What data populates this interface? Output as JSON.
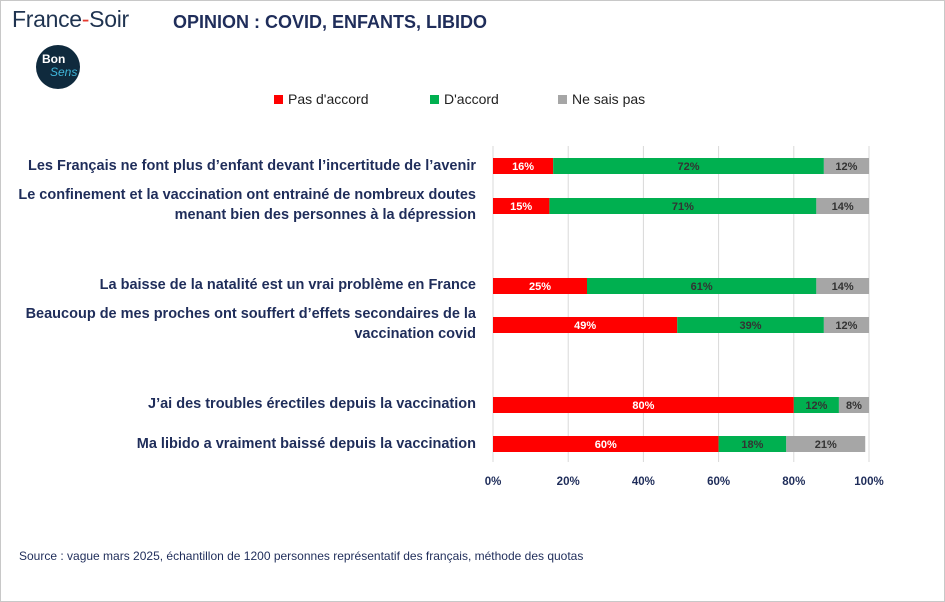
{
  "header": {
    "brand_main": "France",
    "brand_dash": "-",
    "brand_end": "Soir",
    "title": "OPINION : COVID, ENFANTS, LIBIDO",
    "badge_line1": "Bon",
    "badge_line2": "Sens"
  },
  "chart_data": {
    "type": "bar",
    "orientation": "horizontal",
    "stacked": true,
    "percent": true,
    "categories": [
      "Les Français ne font plus d’enfant devant l’incertitude de l’avenir",
      "Le confinement et la vaccination ont entrainé de nombreux doutes menant bien des personnes à la dépression",
      "La baisse de la natalité est un vrai problème en France",
      "Beaucoup de mes proches ont souffert d’effets secondaires de la vaccination covid",
      "J’ai des troubles érectiles depuis la vaccination",
      "Ma libido a vraiment baissé depuis la vaccination"
    ],
    "category_lines": [
      [
        "Les Français ne font plus d’enfant devant l’incertitude de l’avenir"
      ],
      [
        "Le confinement et la vaccination ont entrainé de nombreux doutes",
        "menant bien des personnes à la dépression"
      ],
      [
        "La baisse de la natalité est un vrai problème en France"
      ],
      [
        "Beaucoup de mes proches ont souffert d’effets secondaires de la",
        "vaccination covid"
      ],
      [
        "J’ai des troubles érectiles depuis la vaccination"
      ],
      [
        "Ma libido a vraiment baissé depuis la vaccination"
      ]
    ],
    "series": [
      {
        "name": "Pas d'accord",
        "color": "#ff0000",
        "values": [
          16,
          15,
          25,
          49,
          80,
          60
        ]
      },
      {
        "name": "D'accord",
        "color": "#00b050",
        "values": [
          72,
          71,
          61,
          39,
          12,
          18
        ]
      },
      {
        "name": "Ne sais pas",
        "color": "#a6a6a6",
        "values": [
          12,
          14,
          14,
          12,
          8,
          21
        ]
      }
    ],
    "data_labels": [
      [
        "16%",
        "15%",
        "25%",
        "49%",
        "80%",
        "60%"
      ],
      [
        "72%",
        "71%",
        "61%",
        "39%",
        "12%",
        "18%"
      ],
      [
        "12%",
        "14%",
        "14%",
        "12%",
        "8%",
        "21%"
      ]
    ],
    "xlim": [
      0,
      100
    ],
    "xticks": [
      "0%",
      "20%",
      "40%",
      "60%",
      "80%",
      "100%"
    ],
    "grid": "vertical",
    "legend_position": "top"
  },
  "source": "Source : vague mars 2025, échantillon de 1200 personnes représentatif des français, méthode des quotas"
}
